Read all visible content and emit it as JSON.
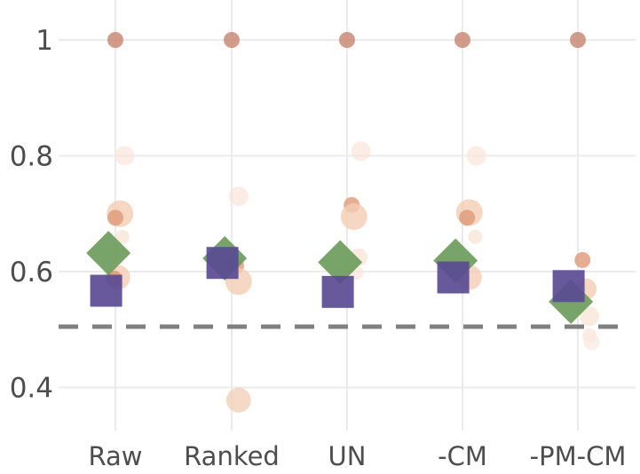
{
  "chart_data": {
    "type": "scatter",
    "categories": [
      "Raw",
      "Ranked",
      "UN",
      "-CM",
      "-PM-CM"
    ],
    "y_ticks": [
      {
        "value": 0.4,
        "label": "0.4"
      },
      {
        "value": 0.6,
        "label": "0.6"
      },
      {
        "value": 0.8,
        "label": "0.8"
      },
      {
        "value": 1.0,
        "label": "1"
      }
    ],
    "ylim": [
      0.31,
      1.07
    ],
    "grid": true,
    "reference_line": {
      "value": 0.505,
      "style": "dashed",
      "color": "#808080"
    },
    "colors": {
      "circle_dark": "#c98b76",
      "circle_mid": "#de9a78",
      "circle_light": "#f2cdb4",
      "circle_faint": "#f9e6da",
      "diamond": "#6e9c5c",
      "square": "#5a4b94"
    },
    "series": [
      {
        "marker": "circle",
        "points": [
          {
            "category": "Raw",
            "offset": 0,
            "y": 1.0,
            "size": 9,
            "color": "circle_dark",
            "opacity": 0.85
          },
          {
            "category": "Raw",
            "offset": 0.08,
            "y": 0.8,
            "size": 11,
            "color": "circle_faint",
            "opacity": 0.7
          },
          {
            "category": "Raw",
            "offset": 0.04,
            "y": 0.7,
            "size": 15,
            "color": "circle_light",
            "opacity": 0.8
          },
          {
            "category": "Raw",
            "offset": 0,
            "y": 0.693,
            "size": 9,
            "color": "circle_mid",
            "opacity": 0.8
          },
          {
            "category": "Raw",
            "offset": 0.06,
            "y": 0.66,
            "size": 8,
            "color": "circle_faint",
            "opacity": 0.8
          },
          {
            "category": "Raw",
            "offset": 0.02,
            "y": 0.59,
            "size": 14,
            "color": "circle_light",
            "opacity": 0.8
          },
          {
            "category": "Raw",
            "offset": -0.01,
            "y": 0.588,
            "size": 9,
            "color": "circle_mid",
            "opacity": 0.85
          },
          {
            "category": "Ranked",
            "offset": 0,
            "y": 1.0,
            "size": 9,
            "color": "circle_dark",
            "opacity": 0.85
          },
          {
            "category": "Ranked",
            "offset": 0.06,
            "y": 0.73,
            "size": 11,
            "color": "circle_faint",
            "opacity": 0.7
          },
          {
            "category": "Ranked",
            "offset": 0.03,
            "y": 0.61,
            "size": 10,
            "color": "circle_mid",
            "opacity": 0.8
          },
          {
            "category": "Ranked",
            "offset": 0.06,
            "y": 0.583,
            "size": 15,
            "color": "circle_light",
            "opacity": 0.8
          },
          {
            "category": "Ranked",
            "offset": 0.06,
            "y": 0.378,
            "size": 14,
            "color": "circle_light",
            "opacity": 0.75
          },
          {
            "category": "UN",
            "offset": 0,
            "y": 1.0,
            "size": 9,
            "color": "circle_dark",
            "opacity": 0.85
          },
          {
            "category": "UN",
            "offset": 0.12,
            "y": 0.808,
            "size": 11,
            "color": "circle_faint",
            "opacity": 0.7
          },
          {
            "category": "UN",
            "offset": 0.04,
            "y": 0.715,
            "size": 9,
            "color": "circle_mid",
            "opacity": 0.8
          },
          {
            "category": "UN",
            "offset": 0.06,
            "y": 0.695,
            "size": 15,
            "color": "circle_light",
            "opacity": 0.8
          },
          {
            "category": "UN",
            "offset": 0.1,
            "y": 0.625,
            "size": 10,
            "color": "circle_faint",
            "opacity": 0.8
          },
          {
            "category": "UN",
            "offset": 0.08,
            "y": 0.598,
            "size": 8,
            "color": "circle_faint",
            "opacity": 0.7
          },
          {
            "category": "-CM",
            "offset": 0,
            "y": 1.0,
            "size": 9,
            "color": "circle_dark",
            "opacity": 0.85
          },
          {
            "category": "-CM",
            "offset": 0.12,
            "y": 0.8,
            "size": 11,
            "color": "circle_faint",
            "opacity": 0.7
          },
          {
            "category": "-CM",
            "offset": 0.06,
            "y": 0.702,
            "size": 15,
            "color": "circle_light",
            "opacity": 0.8
          },
          {
            "category": "-CM",
            "offset": 0.04,
            "y": 0.693,
            "size": 9,
            "color": "circle_mid",
            "opacity": 0.8
          },
          {
            "category": "-CM",
            "offset": 0.11,
            "y": 0.66,
            "size": 8,
            "color": "circle_faint",
            "opacity": 0.8
          },
          {
            "category": "-CM",
            "offset": 0.06,
            "y": 0.59,
            "size": 14,
            "color": "circle_light",
            "opacity": 0.8
          },
          {
            "category": "-PM-CM",
            "offset": 0,
            "y": 1.0,
            "size": 9,
            "color": "circle_dark",
            "opacity": 0.85
          },
          {
            "category": "-PM-CM",
            "offset": 0.04,
            "y": 0.62,
            "size": 9,
            "color": "circle_mid",
            "opacity": 0.8
          },
          {
            "category": "-PM-CM",
            "offset": 0.07,
            "y": 0.57,
            "size": 12,
            "color": "circle_light",
            "opacity": 0.8
          },
          {
            "category": "-PM-CM",
            "offset": 0.1,
            "y": 0.523,
            "size": 11,
            "color": "circle_faint",
            "opacity": 0.8
          },
          {
            "category": "-PM-CM",
            "offset": 0.1,
            "y": 0.49,
            "size": 8,
            "color": "circle_faint",
            "opacity": 0.7
          },
          {
            "category": "-PM-CM",
            "offset": 0.12,
            "y": 0.478,
            "size": 9,
            "color": "circle_faint",
            "opacity": 0.6
          }
        ]
      },
      {
        "marker": "diamond",
        "color": "diamond",
        "points": [
          {
            "category": "Raw",
            "offset": -0.06,
            "y": 0.632
          },
          {
            "category": "Ranked",
            "offset": -0.06,
            "y": 0.623
          },
          {
            "category": "UN",
            "offset": -0.06,
            "y": 0.616
          },
          {
            "category": "-CM",
            "offset": -0.06,
            "y": 0.619
          },
          {
            "category": "-PM-CM",
            "offset": -0.06,
            "y": 0.548
          }
        ]
      },
      {
        "marker": "square",
        "color": "square",
        "points": [
          {
            "category": "Raw",
            "offset": -0.08,
            "y": 0.567
          },
          {
            "category": "Ranked",
            "offset": -0.08,
            "y": 0.615
          },
          {
            "category": "UN",
            "offset": -0.08,
            "y": 0.565
          },
          {
            "category": "-CM",
            "offset": -0.08,
            "y": 0.59
          },
          {
            "category": "-PM-CM",
            "offset": -0.08,
            "y": 0.575
          }
        ]
      }
    ]
  }
}
